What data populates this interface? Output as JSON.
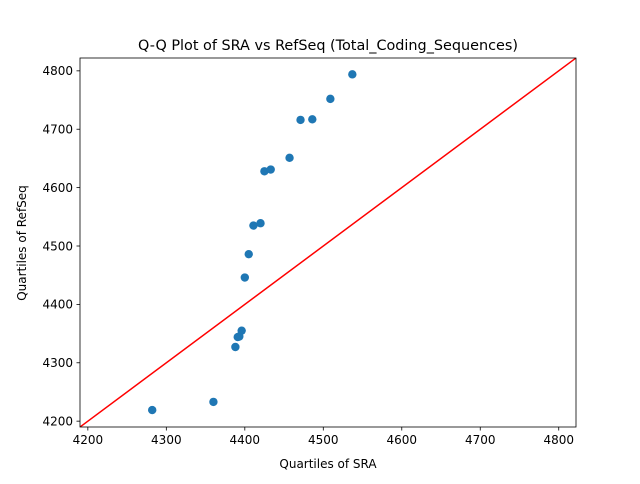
{
  "chart_data": {
    "type": "scatter",
    "title": "Q-Q Plot of SRA vs RefSeq (Total_Coding_Sequences)",
    "xlabel": "Quartiles of SRA",
    "ylabel": "Quartiles of RefSeq",
    "xlim": [
      4190,
      4822
    ],
    "ylim": [
      4190,
      4822
    ],
    "xticks": [
      4200,
      4300,
      4400,
      4500,
      4600,
      4700,
      4800
    ],
    "yticks": [
      4200,
      4300,
      4400,
      4500,
      4600,
      4700,
      4800
    ],
    "grid": false,
    "marker_color": "#1f77b4",
    "reference_line": {
      "kind": "y=x",
      "color": "#ff0000"
    },
    "points": [
      {
        "x": 4282,
        "y": 4219
      },
      {
        "x": 4360,
        "y": 4233
      },
      {
        "x": 4388,
        "y": 4327
      },
      {
        "x": 4391,
        "y": 4344
      },
      {
        "x": 4393,
        "y": 4345
      },
      {
        "x": 4396,
        "y": 4355
      },
      {
        "x": 4400,
        "y": 4446
      },
      {
        "x": 4405,
        "y": 4486
      },
      {
        "x": 4411,
        "y": 4535
      },
      {
        "x": 4420,
        "y": 4539
      },
      {
        "x": 4425,
        "y": 4628
      },
      {
        "x": 4433,
        "y": 4631
      },
      {
        "x": 4457,
        "y": 4651
      },
      {
        "x": 4471,
        "y": 4716
      },
      {
        "x": 4486,
        "y": 4717
      },
      {
        "x": 4509,
        "y": 4752
      },
      {
        "x": 4537,
        "y": 4794
      }
    ]
  }
}
